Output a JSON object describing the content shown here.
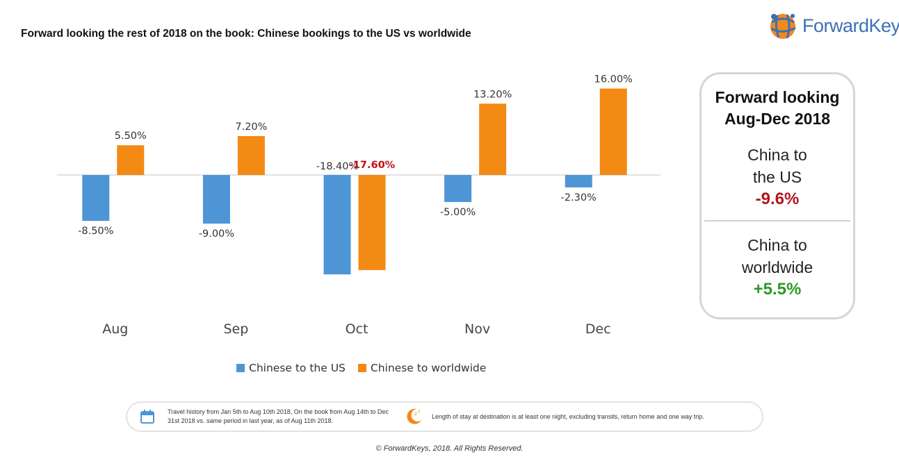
{
  "title": "Forward looking the rest of 2018 on the book: Chinese bookings to the US vs worldwide",
  "logo": {
    "text": "ForwardKeys",
    "icon": "globe-logo-icon"
  },
  "colors": {
    "us": "#4e95d6",
    "worldwide": "#f28a14",
    "highlight": "#c0101a",
    "negative": "#b3141f",
    "positive": "#2a9a22"
  },
  "chart_data": {
    "type": "bar",
    "categories": [
      "Aug",
      "Sep",
      "Oct",
      "Nov",
      "Dec"
    ],
    "series": [
      {
        "name": "Chinese to the US",
        "values": [
          -8.5,
          -9.0,
          -18.4,
          -5.0,
          -2.3
        ],
        "labels": [
          "-8.50%",
          "-9.00%",
          "-18.40%",
          "-5.00%",
          "-2.30%"
        ]
      },
      {
        "name": "Chinese to worldwide",
        "values": [
          5.5,
          7.2,
          -17.6,
          13.2,
          16.0
        ],
        "labels": [
          "5.50%",
          "7.20%",
          "-17.60%",
          "13.20%",
          "16.00%"
        ]
      }
    ],
    "highlight_label": {
      "series": 1,
      "index": 2
    },
    "ylim": [
      -20,
      17
    ],
    "grid": false,
    "legend": "bottom"
  },
  "summary": {
    "title_line1": "Forward looking",
    "title_line2": "Aug-Dec 2018",
    "sec1_line1": "China to",
    "sec1_line2": "the US",
    "sec1_value": "-9.6%",
    "sec2_line1": "China to",
    "sec2_line2": "worldwide",
    "sec2_value": "+5.5%"
  },
  "footnote": {
    "left_text": "Travel history from Jan 5th to Aug 10th 2018, On the book from Aug 14th to Dec 31st 2018 vs. same period in last year, as of Aug 11th 2018.",
    "right_text": "Length of stay at destination is at least one night, excluding transits, return home and one way trip.",
    "left_icon": "calendar-icon",
    "right_icon": "moon-icon"
  },
  "copyright": "© ForwardKeys, 2018. All Rights Reserved."
}
